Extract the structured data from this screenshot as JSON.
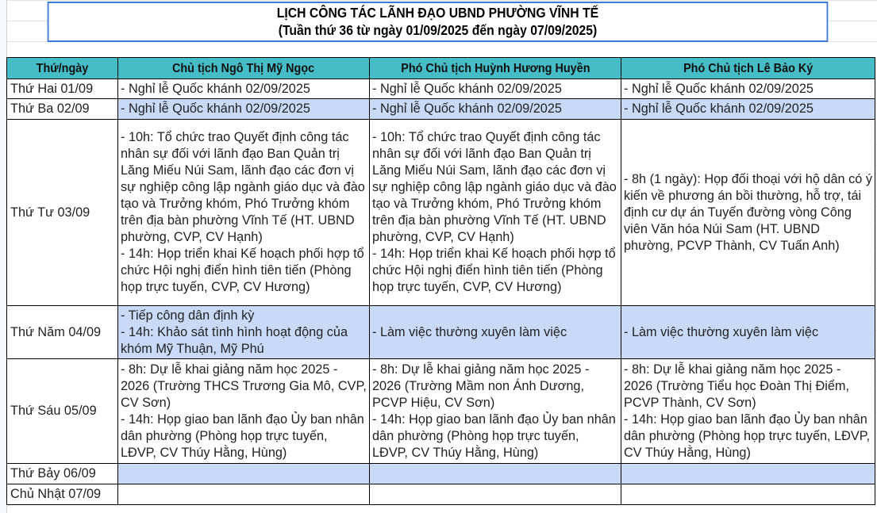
{
  "title": "LỊCH CÔNG TÁC LÃNH ĐẠO UBND PHƯỜNG VĨNH TẾ",
  "subtitle": "(Tuần thứ 36 từ ngày 01/09/2025 đến ngày 07/09/2025)",
  "colors": {
    "header_bg": "#46bdc6",
    "highlight_row": "#c9daf8",
    "title_border": "#3c78d8"
  },
  "headers": [
    "Thứ/ngày",
    "Chủ tịch Ngô Thị Mỹ Ngọc",
    "Phó Chủ tịch Huỳnh Hương Huyền",
    "Phó Chủ tịch Lê Bảo Ký"
  ],
  "rows": [
    {
      "day": "Thứ Hai 01/09",
      "cells": [
        "- Nghỉ lễ Quốc khánh 02/09/2025",
        "- Nghỉ lễ Quốc khánh 02/09/2025",
        "- Nghỉ lễ Quốc khánh 02/09/2025"
      ]
    },
    {
      "day": "Thứ Ba 02/09",
      "cells": [
        "- Nghỉ lễ Quốc khánh 02/09/2025",
        "- Nghỉ lễ Quốc khánh 02/09/2025",
        "- Nghỉ lễ Quốc khánh 02/09/2025"
      ]
    },
    {
      "day": "Thứ Tư 03/09",
      "cells": [
        "- 10h: Tổ chức trao Quyết định công tác nhân sự đối với lãnh đạo Ban Quản trị Lăng Miếu Núi Sam, lãnh đạo các đơn vị sự nghiệp công lập ngành giáo dục và đào tạo và Trưởng khóm, Phó Trưởng khóm trên địa bàn phường Vĩnh Tế (HT. UBND phường, CVP, CV Hạnh)\n- 14h: Họp triển khai Kế hoạch phối hợp tổ chức Hội nghị điển hình tiên tiến (Phòng họp trực tuyến, CVP, CV Hương)",
        "- 10h: Tổ chức trao Quyết định công tác nhân sự đối với lãnh đạo Ban Quản trị Lăng Miếu Núi Sam, lãnh đạo các đơn vị sự nghiệp công lập ngành giáo dục và đào tạo và Trưởng khóm, Phó Trưởng khóm trên địa bàn phường Vĩnh Tế (HT. UBND phường, CVP, CV Hạnh)\n- 14h: Họp triển khai Kế hoạch phối hợp tổ chức Hội nghị điển hình tiên tiến (Phòng họp trực tuyến, CVP, CV Hương)",
        "- 8h (1 ngày): Họp đối thoại với hộ dân có ý kiến về phương án bồi thường, hỗ trợ, tái định cư dự án Tuyến đường vòng Công viên Văn hóa Núi Sam (HT. UBND phường, PCVP Thành, CV Tuấn Anh)"
      ]
    },
    {
      "day": "Thứ Năm 04/09",
      "cells": [
        "- Tiếp công dân định kỳ\n- 14h: Khảo sát tình hình hoạt động của khóm Mỹ Thuận, Mỹ Phú",
        "- Làm việc thường xuyên làm việc",
        "- Làm việc thường xuyên làm việc"
      ]
    },
    {
      "day": "Thứ Sáu 05/09",
      "cells": [
        "- 8h: Dự lễ khai giảng năm học 2025 - 2026 (Trường THCS Trương Gia Mô, CVP, CV Sơn)\n- 14h: Họp giao ban lãnh đạo Ủy ban nhân dân phường (Phòng họp trực tuyến, LĐVP, CV Thúy Hằng, Hùng)",
        "- 8h: Dự lễ khai giảng năm học 2025 - 2026 (Trường Mầm non Ánh Dương, PCVP Hiệu, CV Sơn)\n- 14h: Họp giao ban lãnh đạo Ủy ban nhân dân phường (Phòng họp trực tuyến, LĐVP, CV Thúy Hằng, Hùng)",
        "- 8h: Dự lễ khai giảng năm học 2025 - 2026 (Trường Tiểu học Đoàn Thị Điểm, PCVP Thành, CV Sơn)\n- 14h: Họp giao ban lãnh đạo Ủy ban nhân dân phường (Phòng họp trực tuyến, LĐVP, CV Thúy Hằng, Hùng)"
      ]
    },
    {
      "day": "Thứ Bảy 06/09",
      "cells": [
        "",
        "",
        ""
      ]
    },
    {
      "day": "Chủ Nhật 07/09",
      "cells": [
        "",
        "",
        ""
      ]
    }
  ]
}
